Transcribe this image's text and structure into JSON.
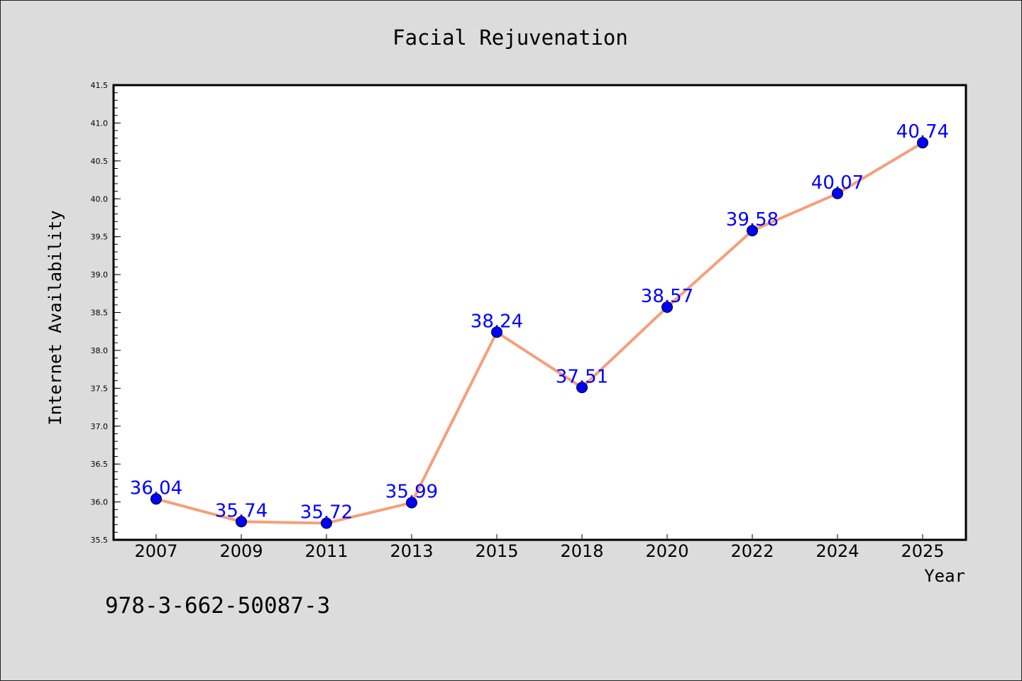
{
  "chart_data": {
    "type": "line",
    "title": "Facial Rejuvenation",
    "xlabel": "Year",
    "ylabel": "Internet Availability",
    "categories": [
      "2007",
      "2009",
      "2011",
      "2013",
      "2015",
      "2018",
      "2020",
      "2022",
      "2024",
      "2025"
    ],
    "series": [
      {
        "values": [
          36.04,
          35.74,
          35.72,
          35.99,
          38.24,
          37.51,
          38.57,
          39.58,
          40.07,
          40.74
        ],
        "labels": [
          "36.04",
          "35.74",
          "35.72",
          "35.99",
          "38.24",
          "37.51",
          "38.57",
          "39.58",
          "40.07",
          "40.74"
        ],
        "line_color": "#f4a07c",
        "marker_color": "#0000ff",
        "label_color": "#0000ff"
      }
    ],
    "ylim": [
      35.5,
      41.5
    ],
    "yticks": [
      "35.5",
      "36.0",
      "36.5",
      "37.0",
      "37.5",
      "38.0",
      "38.5",
      "39.0",
      "39.5",
      "40.0",
      "40.5",
      "41.0",
      "41.5"
    ],
    "grid": false,
    "legend": "none"
  },
  "annotation": "978-3-662-50087-3",
  "colors": {
    "background": "#dcdcdc",
    "plot_background": "#ffffff"
  }
}
